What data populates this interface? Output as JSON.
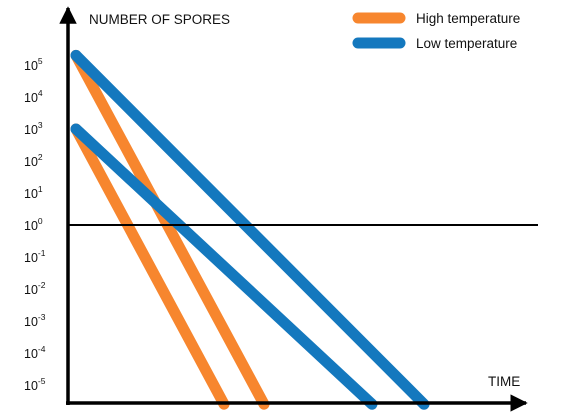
{
  "chart_data": {
    "type": "line",
    "title": "",
    "ylabel": "NUMBER OF SPORES",
    "xlabel": "TIME",
    "yscale": "log",
    "ylim_exponent": [
      -5.6,
      5.5
    ],
    "xlim": [
      0,
      10
    ],
    "grid": false,
    "legend": "top-right",
    "y_ticks": [
      {
        "base": "10",
        "exp": "5"
      },
      {
        "base": "10",
        "exp": "4"
      },
      {
        "base": "10",
        "exp": "3"
      },
      {
        "base": "10",
        "exp": "2"
      },
      {
        "base": "10",
        "exp": "1"
      },
      {
        "base": "10",
        "exp": "0"
      },
      {
        "base": "10",
        "exp": "-1"
      },
      {
        "base": "10",
        "exp": "-2"
      },
      {
        "base": "10",
        "exp": "-3"
      },
      {
        "base": "10",
        "exp": "-4"
      },
      {
        "base": "10",
        "exp": "-5"
      }
    ],
    "reference_line_exponent": 0,
    "series": [
      {
        "name": "High temperature",
        "color": "#F7862E",
        "lines": [
          {
            "x": [
              0,
              4.7
            ],
            "y_exponent": [
              5.3,
              -5.6
            ]
          },
          {
            "x": [
              0,
              3.7
            ],
            "y_exponent": [
              3.0,
              -5.6
            ]
          }
        ]
      },
      {
        "name": "Low temperature",
        "color": "#1478BE",
        "lines": [
          {
            "x": [
              0,
              8.7
            ],
            "y_exponent": [
              5.3,
              -5.6
            ]
          },
          {
            "x": [
              0,
              7.4
            ],
            "y_exponent": [
              3.0,
              -5.6
            ]
          }
        ]
      }
    ]
  }
}
